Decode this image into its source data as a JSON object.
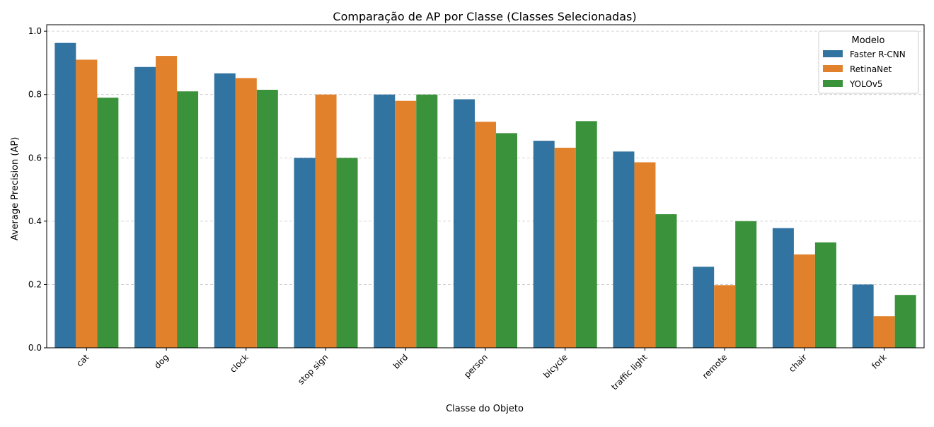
{
  "chart_data": {
    "type": "bar",
    "title": "Comparação de AP por Classe (Classes Selecionadas)",
    "xlabel": "Classe do Objeto",
    "ylabel": "Average Precision (AP)",
    "ylim": [
      0,
      1.0
    ],
    "yticks": [
      "0.0",
      "0.2",
      "0.4",
      "0.6",
      "0.8",
      "1.0"
    ],
    "grid": "horizontal dashed",
    "categories": [
      "cat",
      "dog",
      "clock",
      "stop sign",
      "bird",
      "person",
      "bicycle",
      "traffic light",
      "remote",
      "chair",
      "fork"
    ],
    "legend": {
      "title": "Modelo",
      "placement": "top-right"
    },
    "series": [
      {
        "name": "Faster R-CNN",
        "color": "#3274a1",
        "values": [
          0.963,
          0.887,
          0.867,
          0.6,
          0.8,
          0.785,
          0.654,
          0.62,
          0.256,
          0.378,
          0.2
        ]
      },
      {
        "name": "RetinaNet",
        "color": "#e1812c",
        "values": [
          0.91,
          0.922,
          0.852,
          0.8,
          0.78,
          0.714,
          0.632,
          0.586,
          0.198,
          0.295,
          0.1
        ]
      },
      {
        "name": "YOLOv5",
        "color": "#3a923a",
        "values": [
          0.79,
          0.81,
          0.815,
          0.6,
          0.8,
          0.678,
          0.716,
          0.422,
          0.4,
          0.333,
          0.167
        ]
      }
    ]
  }
}
